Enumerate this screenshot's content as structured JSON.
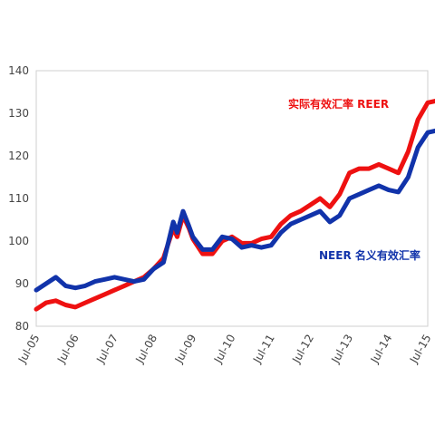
{
  "chart_data": {
    "type": "line",
    "title": "",
    "xlabel": "",
    "ylabel": "",
    "ylim": [
      80,
      140
    ],
    "yticks": [
      80,
      90,
      100,
      110,
      120,
      130,
      140
    ],
    "x_tick_labels": [
      "Jul-05",
      "Jul-06",
      "Jul-07",
      "Jul-08",
      "Jul-09",
      "Jul-10",
      "Jul-11",
      "Jul-12",
      "Jul-13",
      "Jul-14",
      "Jul-15"
    ],
    "grid": false,
    "series": [
      {
        "name": "实际有效汇率 REER",
        "color": "#ee1111",
        "values": [
          [
            0,
            84
          ],
          [
            0.25,
            85.5
          ],
          [
            0.5,
            86
          ],
          [
            0.75,
            85
          ],
          [
            1.0,
            84.5
          ],
          [
            1.25,
            85.5
          ],
          [
            1.5,
            86.5
          ],
          [
            1.75,
            87.5
          ],
          [
            2.0,
            88.5
          ],
          [
            2.25,
            89.5
          ],
          [
            2.5,
            90.5
          ],
          [
            2.75,
            91.5
          ],
          [
            3.0,
            93.5
          ],
          [
            3.25,
            96
          ],
          [
            3.5,
            103
          ],
          [
            3.6,
            101
          ],
          [
            3.75,
            106
          ],
          [
            3.9,
            103
          ],
          [
            4.0,
            100.5
          ],
          [
            4.25,
            97
          ],
          [
            4.5,
            97
          ],
          [
            4.75,
            100
          ],
          [
            5.0,
            101
          ],
          [
            5.25,
            99.5
          ],
          [
            5.5,
            99.5
          ],
          [
            5.75,
            100.5
          ],
          [
            6.0,
            101
          ],
          [
            6.25,
            104
          ],
          [
            6.5,
            106
          ],
          [
            6.75,
            107
          ],
          [
            7.0,
            108.5
          ],
          [
            7.25,
            110
          ],
          [
            7.5,
            108
          ],
          [
            7.75,
            111
          ],
          [
            8.0,
            116
          ],
          [
            8.25,
            117
          ],
          [
            8.5,
            117
          ],
          [
            8.75,
            118
          ],
          [
            9.0,
            117
          ],
          [
            9.25,
            116
          ],
          [
            9.5,
            121
          ],
          [
            9.75,
            128.5
          ],
          [
            10.0,
            132.5
          ],
          [
            10.25,
            133
          ],
          [
            10.5,
            134
          ]
        ]
      },
      {
        "name": "NEER 名义有效汇率",
        "color": "#1133aa",
        "values": [
          [
            0,
            88.5
          ],
          [
            0.25,
            90
          ],
          [
            0.5,
            91.5
          ],
          [
            0.75,
            89.5
          ],
          [
            1.0,
            89
          ],
          [
            1.25,
            89.5
          ],
          [
            1.5,
            90.5
          ],
          [
            1.75,
            91
          ],
          [
            2.0,
            91.5
          ],
          [
            2.25,
            91
          ],
          [
            2.5,
            90.5
          ],
          [
            2.75,
            91
          ],
          [
            3.0,
            93.5
          ],
          [
            3.25,
            95
          ],
          [
            3.5,
            104.5
          ],
          [
            3.6,
            102
          ],
          [
            3.75,
            107
          ],
          [
            3.9,
            103.5
          ],
          [
            4.0,
            101
          ],
          [
            4.25,
            98
          ],
          [
            4.5,
            98
          ],
          [
            4.75,
            101
          ],
          [
            5.0,
            100.5
          ],
          [
            5.25,
            98.5
          ],
          [
            5.5,
            99
          ],
          [
            5.75,
            98.5
          ],
          [
            6.0,
            99
          ],
          [
            6.25,
            102
          ],
          [
            6.5,
            104
          ],
          [
            6.75,
            105
          ],
          [
            7.0,
            106
          ],
          [
            7.25,
            107
          ],
          [
            7.5,
            104.5
          ],
          [
            7.75,
            106
          ],
          [
            8.0,
            110
          ],
          [
            8.25,
            111
          ],
          [
            8.5,
            112
          ],
          [
            8.75,
            113
          ],
          [
            9.0,
            112
          ],
          [
            9.25,
            111.5
          ],
          [
            9.5,
            115
          ],
          [
            9.75,
            122
          ],
          [
            10.0,
            125.5
          ],
          [
            10.25,
            126
          ],
          [
            10.5,
            127
          ]
        ]
      }
    ]
  }
}
